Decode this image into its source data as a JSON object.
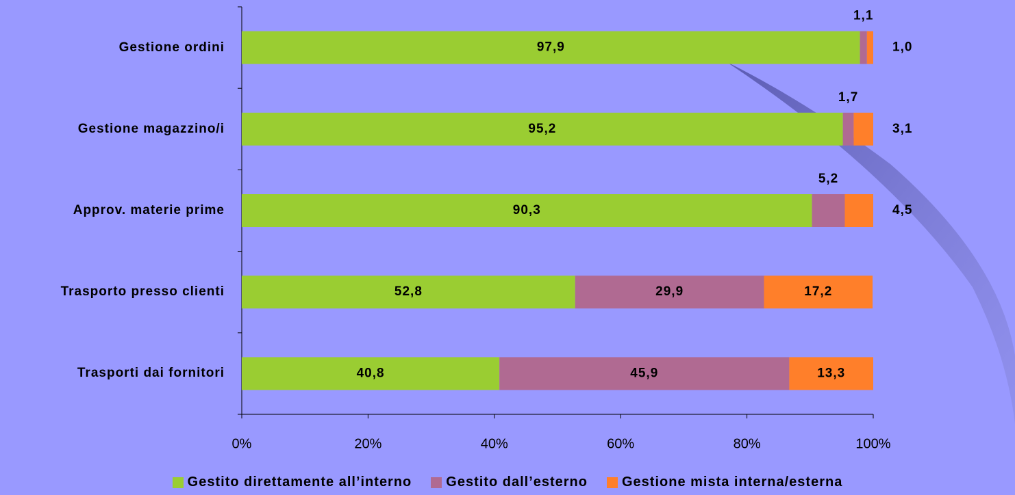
{
  "chart_data": {
    "type": "stacked-barh",
    "categories": [
      "Gestione ordini",
      "Gestione magazzino/i",
      "Approv. materie prime",
      "Trasporto presso clienti",
      "Trasporti dai fornitori"
    ],
    "series": [
      {
        "name": "Gestito direttamente all’interno",
        "color": "#9acd32",
        "values": [
          97.9,
          95.2,
          90.3,
          52.8,
          40.8
        ],
        "value_labels": [
          "97,9",
          "95,2",
          "90,3",
          "52,8",
          "40,8"
        ]
      },
      {
        "name": "Gestito dall’esterno",
        "color": "#b06a92",
        "values": [
          1.1,
          1.7,
          5.2,
          29.9,
          45.9
        ],
        "value_labels": [
          "1,1",
          "1,7",
          "5,2",
          "29,9",
          "45,9"
        ]
      },
      {
        "name": "Gestione mista interna/esterna",
        "color": "#ff7f2a",
        "values": [
          1.0,
          3.1,
          4.5,
          17.2,
          13.3
        ],
        "value_labels": [
          "1,0",
          "3,1",
          "4,5",
          "17,2",
          "13,3"
        ]
      }
    ],
    "xlim": [
      0,
      100
    ],
    "xticks": [
      {
        "value": 0,
        "label": "0%"
      },
      {
        "value": 20,
        "label": "20%"
      },
      {
        "value": 40,
        "label": "40%"
      },
      {
        "value": 60,
        "label": "60%"
      },
      {
        "value": 80,
        "label": "80%"
      },
      {
        "value": 100,
        "label": "100%"
      }
    ],
    "legend": "bottom"
  }
}
